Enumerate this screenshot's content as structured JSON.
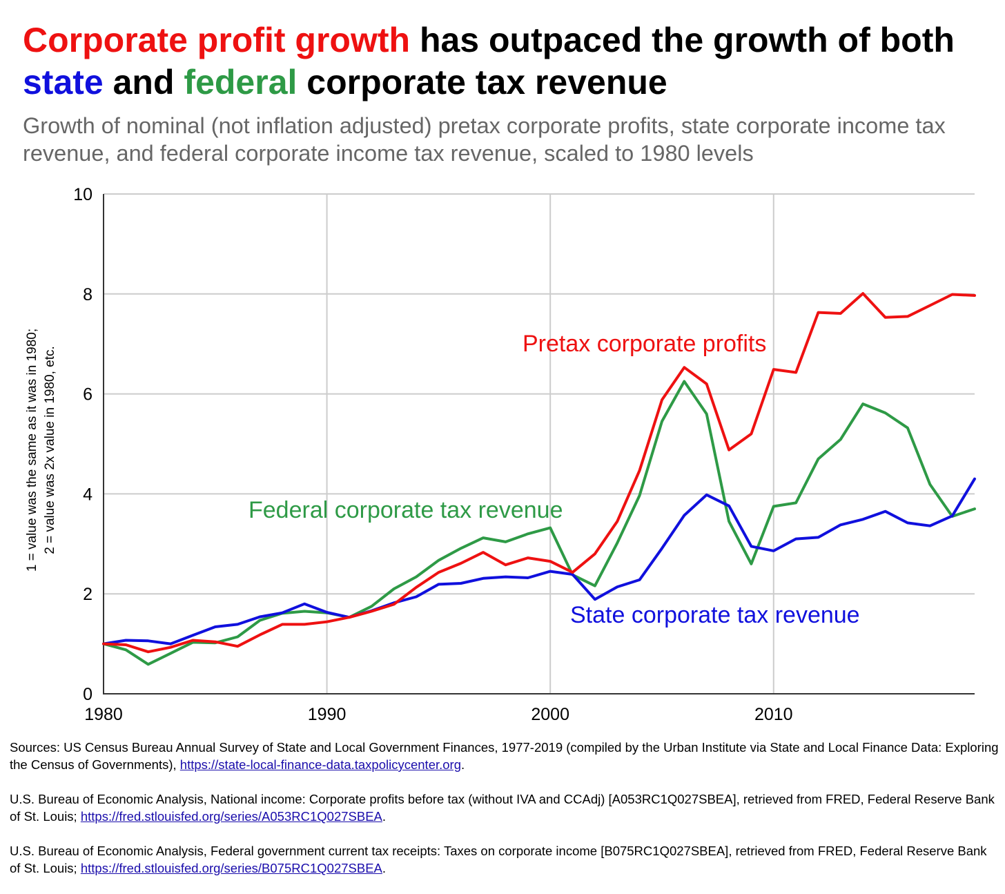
{
  "title": {
    "part1": "Corporate profit growth",
    "part2": " has outpaced the growth of both ",
    "part3": "state",
    "part4": " and ",
    "part5": "federal",
    "part6": " corporate tax revenue"
  },
  "subtitle": "Growth of nominal (not inflation adjusted) pretax corporate profits, state corporate income tax revenue, and federal corporate income tax revenue, scaled to 1980 levels",
  "colors": {
    "red": "#ee1111",
    "blue": "#1010dd",
    "green": "#2e9a46",
    "grid": "#cccccc",
    "subtitle": "#666666"
  },
  "chart_data": {
    "type": "line",
    "title": "",
    "xlabel": "",
    "ylabel_line1": "1 = value was the same as it was in 1980;",
    "ylabel_line2": "2 = value was 2x value in 1980, etc.",
    "xlim": [
      1980,
      2019
    ],
    "ylim": [
      0,
      10
    ],
    "grid": true,
    "x_ticks": [
      1980,
      1990,
      2000,
      2010
    ],
    "x_tick_labels": [
      "1980",
      "1990",
      "2000",
      "2010"
    ],
    "y_ticks": [
      0,
      2,
      4,
      6,
      8,
      10
    ],
    "y_tick_labels": [
      "0",
      "2",
      "4",
      "6",
      "8",
      "10"
    ],
    "x": [
      1980,
      1981,
      1982,
      1983,
      1984,
      1985,
      1986,
      1987,
      1988,
      1989,
      1990,
      1991,
      1992,
      1993,
      1994,
      1995,
      1996,
      1997,
      1998,
      1999,
      2000,
      2001,
      2002,
      2003,
      2004,
      2005,
      2006,
      2007,
      2008,
      2009,
      2010,
      2011,
      2012,
      2013,
      2014,
      2015,
      2016,
      2017,
      2018,
      2019
    ],
    "series": [
      {
        "name": "Pretax corporate profits",
        "color": "#ee1111",
        "values": [
          1.0,
          0.98,
          0.84,
          0.93,
          1.07,
          1.04,
          0.95,
          1.18,
          1.39,
          1.39,
          1.44,
          1.53,
          1.65,
          1.79,
          2.13,
          2.43,
          2.61,
          2.83,
          2.58,
          2.72,
          2.65,
          2.43,
          2.8,
          3.45,
          4.47,
          5.88,
          6.53,
          6.2,
          4.88,
          5.2,
          6.49,
          6.43,
          7.63,
          7.61,
          8.01,
          7.53,
          7.55,
          7.77,
          7.99,
          7.97
        ]
      },
      {
        "name": "Federal corporate tax revenue",
        "color": "#2e9a46",
        "values": [
          1.0,
          0.88,
          0.59,
          0.81,
          1.03,
          1.02,
          1.14,
          1.47,
          1.61,
          1.65,
          1.62,
          1.53,
          1.75,
          2.1,
          2.34,
          2.67,
          2.91,
          3.12,
          3.04,
          3.2,
          3.32,
          2.38,
          2.16,
          3.02,
          3.97,
          5.45,
          6.25,
          5.6,
          3.45,
          2.6,
          3.75,
          3.82,
          4.7,
          5.09,
          5.8,
          5.62,
          5.32,
          4.19,
          3.55,
          3.7
        ]
      },
      {
        "name": "State corporate tax revenue",
        "color": "#1010dd",
        "values": [
          1.0,
          1.07,
          1.06,
          1.0,
          1.17,
          1.34,
          1.39,
          1.54,
          1.62,
          1.8,
          1.63,
          1.53,
          1.66,
          1.82,
          1.94,
          2.19,
          2.21,
          2.31,
          2.34,
          2.32,
          2.45,
          2.39,
          1.89,
          2.14,
          2.28,
          2.91,
          3.57,
          3.98,
          3.76,
          2.95,
          2.86,
          3.1,
          3.13,
          3.38,
          3.49,
          3.65,
          3.42,
          3.36,
          3.56,
          4.3
        ]
      }
    ],
    "annotations": [
      {
        "text": "Pretax corporate profits",
        "series": "Pretax corporate profits"
      },
      {
        "text": "Federal corporate tax revenue",
        "series": "Federal corporate tax revenue"
      },
      {
        "text": "State corporate tax revenue",
        "series": "State corporate tax revenue"
      }
    ]
  },
  "sources": [
    {
      "text": "Sources: US Census Bureau Annual Survey of State and Local Government Finances, 1977-2019 (compiled by the Urban Institute via State and Local Finance Data: Exploring the Census of Governments), ",
      "link": "https://state-local-finance-data.taxpolicycenter.org",
      "after": "."
    },
    {
      "text": "U.S. Bureau of Economic Analysis, National income: Corporate profits before tax (without IVA and CCAdj) [A053RC1Q027SBEA], retrieved from FRED, Federal Reserve Bank of St. Louis; ",
      "link": "https://fred.stlouisfed.org/series/A053RC1Q027SBEA",
      "after": "."
    },
    {
      "text": "U.S. Bureau of Economic Analysis, Federal government current tax receipts: Taxes on corporate income [B075RC1Q027SBEA], retrieved from FRED, Federal Reserve Bank of St. Louis; ",
      "link": "https://fred.stlouisfed.org/series/B075RC1Q027SBEA",
      "after": "."
    }
  ]
}
